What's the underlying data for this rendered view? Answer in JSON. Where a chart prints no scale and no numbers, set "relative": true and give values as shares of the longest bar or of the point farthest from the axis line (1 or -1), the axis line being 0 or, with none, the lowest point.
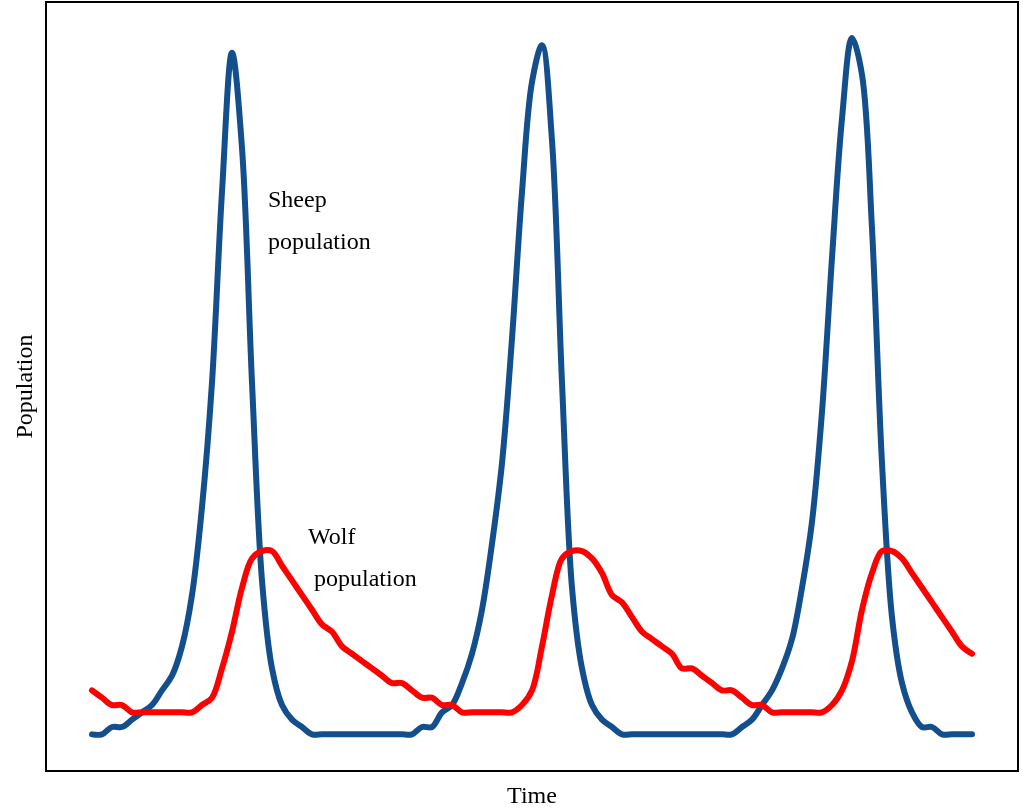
{
  "chart_data": {
    "type": "line",
    "xlabel": "Time",
    "ylabel": "Population",
    "relative": true,
    "tick_labels": false,
    "grid": false,
    "legend": false,
    "line_style": "solid",
    "marker": "none",
    "categories": [
      null,
      null,
      null,
      null,
      null,
      null,
      null,
      null,
      null,
      null,
      null,
      null,
      null,
      null,
      null,
      null,
      null,
      null,
      null,
      null,
      null,
      null,
      null,
      null,
      null,
      null,
      null,
      null,
      null,
      null,
      null,
      null,
      null,
      null,
      null,
      null,
      null,
      null,
      null,
      null,
      null,
      null,
      null,
      null,
      null,
      null,
      null,
      null,
      null,
      null,
      null,
      null,
      null,
      null,
      null,
      null,
      null,
      null,
      null,
      null,
      null,
      null,
      null,
      null,
      null,
      null,
      null,
      null,
      null,
      null,
      null,
      null,
      null,
      null,
      null,
      null,
      null,
      null,
      null,
      null,
      null,
      null,
      null,
      null,
      null,
      null,
      null,
      null,
      null
    ],
    "series": [
      {
        "name": "Sheep population",
        "color": "#134f8c",
        "values": [
          0.05,
          0.05,
          0.06,
          0.06,
          0.07,
          0.08,
          0.09,
          0.11,
          0.13,
          0.17,
          0.24,
          0.36,
          0.53,
          0.79,
          0.98,
          0.85,
          0.53,
          0.26,
          0.14,
          0.09,
          0.07,
          0.06,
          0.05,
          0.05,
          0.05,
          0.05,
          0.05,
          0.05,
          0.05,
          0.05,
          0.05,
          0.05,
          0.05,
          0.06,
          0.06,
          0.08,
          0.09,
          0.12,
          0.16,
          0.22,
          0.31,
          0.42,
          0.59,
          0.79,
          0.94,
          0.99,
          0.86,
          0.53,
          0.25,
          0.14,
          0.09,
          0.07,
          0.06,
          0.05,
          0.05,
          0.05,
          0.05,
          0.05,
          0.05,
          0.05,
          0.05,
          0.05,
          0.05,
          0.05,
          0.05,
          0.06,
          0.07,
          0.09,
          0.11,
          0.14,
          0.18,
          0.25,
          0.34,
          0.49,
          0.7,
          0.89,
          1,
          0.95,
          0.74,
          0.42,
          0.21,
          0.12,
          0.08,
          0.06,
          0.06,
          0.05,
          0.05,
          0.05,
          0.05
        ]
      },
      {
        "name": "Wolf population",
        "color": "#ff0000",
        "values": [
          0.11,
          0.1,
          0.09,
          0.09,
          0.08,
          0.08,
          0.08,
          0.08,
          0.08,
          0.08,
          0.08,
          0.09,
          0.1,
          0.14,
          0.19,
          0.25,
          0.29,
          0.3,
          0.3,
          0.28,
          0.26,
          0.24,
          0.22,
          0.2,
          0.19,
          0.17,
          0.16,
          0.15,
          0.14,
          0.13,
          0.12,
          0.12,
          0.11,
          0.1,
          0.1,
          0.09,
          0.09,
          0.08,
          0.08,
          0.08,
          0.08,
          0.08,
          0.08,
          0.09,
          0.11,
          0.17,
          0.24,
          0.29,
          0.3,
          0.3,
          0.29,
          0.27,
          0.24,
          0.23,
          0.21,
          0.19,
          0.18,
          0.17,
          0.16,
          0.14,
          0.14,
          0.13,
          0.12,
          0.11,
          0.11,
          0.1,
          0.09,
          0.09,
          0.08,
          0.08,
          0.08,
          0.08,
          0.08,
          0.08,
          0.09,
          0.11,
          0.15,
          0.22,
          0.27,
          0.3,
          0.3,
          0.29,
          0.27,
          0.25,
          0.23,
          0.21,
          0.19,
          0.17,
          0.16
        ]
      }
    ]
  }
}
